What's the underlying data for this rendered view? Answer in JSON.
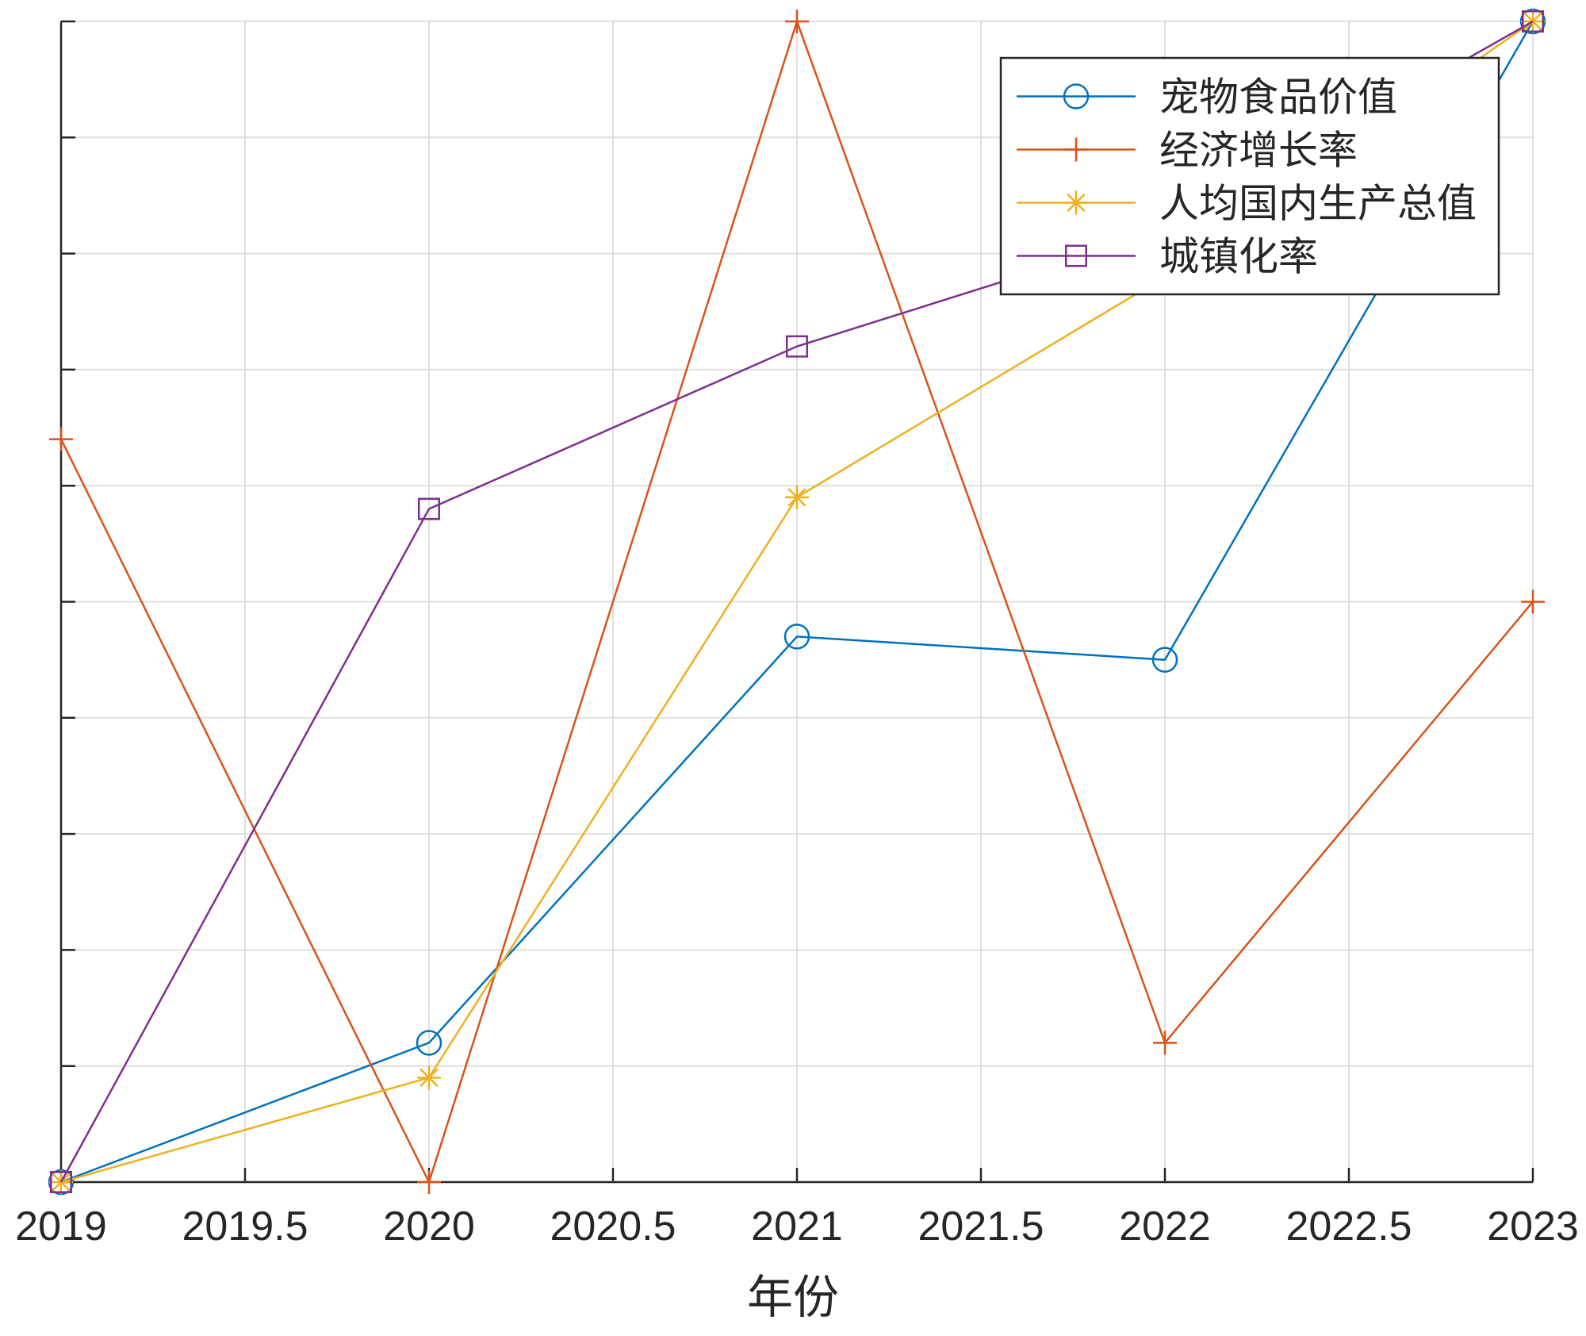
{
  "chart_data": {
    "type": "line",
    "title": "",
    "xlabel": "年份",
    "ylabel": "",
    "x": [
      2019,
      2020,
      2021,
      2022,
      2023
    ],
    "xlim": [
      2019,
      2023
    ],
    "xticks": [
      2019,
      2019.5,
      2020,
      2020.5,
      2021,
      2021.5,
      2022,
      2022.5,
      2023
    ],
    "xtick_labels": [
      "2019",
      "2019.5",
      "2020",
      "2020.5",
      "2021",
      "2021.5",
      "2022",
      "2022.5",
      "2023"
    ],
    "ylim": [
      0,
      1
    ],
    "yticks": [
      0,
      0.1,
      0.2,
      0.3,
      0.4,
      0.5,
      0.6,
      0.7,
      0.8,
      0.9,
      1.0
    ],
    "ytick_labels_visible": false,
    "grid": true,
    "legend_position": "top-right",
    "series": [
      {
        "name": "宠物食品价值",
        "values": [
          0.0,
          0.12,
          0.47,
          0.45,
          1.0
        ],
        "color": "#0072BD",
        "marker": "circle"
      },
      {
        "name": "经济增长率",
        "values": [
          0.64,
          0.0,
          1.0,
          0.12,
          0.5
        ],
        "color": "#D95319",
        "marker": "plus"
      },
      {
        "name": "人均国内生产总值",
        "values": [
          0.0,
          0.09,
          0.59,
          0.78,
          1.0
        ],
        "color": "#EDB120",
        "marker": "asterisk"
      },
      {
        "name": "城镇化率",
        "values": [
          0.0,
          0.58,
          0.72,
          0.82,
          1.0
        ],
        "color": "#7E2F8E",
        "marker": "square"
      }
    ]
  }
}
